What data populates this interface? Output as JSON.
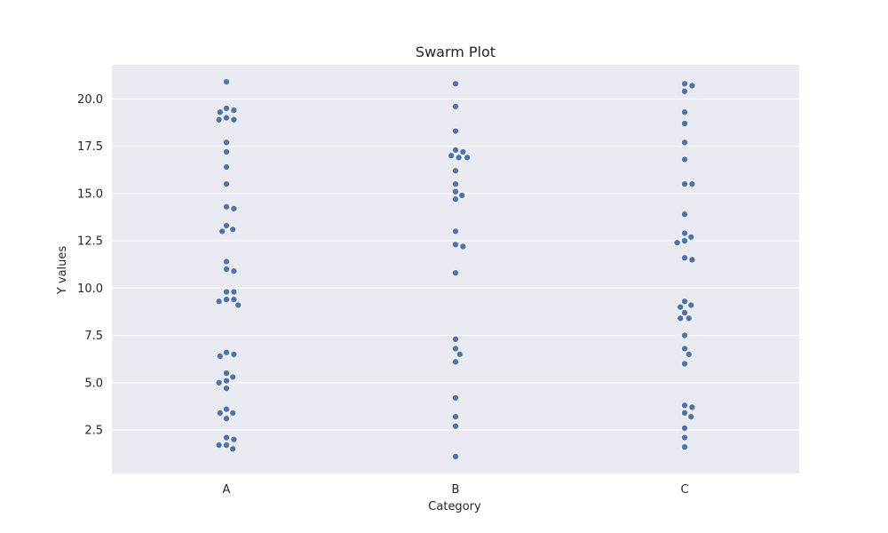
{
  "chart_data": {
    "type": "scatter",
    "subtype": "swarm",
    "title": "Swarm Plot",
    "xlabel": "Category",
    "ylabel": "Y values",
    "categories": [
      "A",
      "B",
      "C"
    ],
    "yticks": [
      "2.5",
      "5.0",
      "7.5",
      "10.0",
      "12.5",
      "15.0",
      "17.5",
      "20.0"
    ],
    "ylim": [
      0.2,
      21.8
    ],
    "grid": true,
    "legend": "none",
    "point_color": "#4c72b0",
    "background_color": "#eaeaf2",
    "series": [
      {
        "category": "A",
        "values": [
          20.9,
          19.5,
          19.3,
          19.4,
          19.0,
          18.9,
          18.9,
          17.7,
          17.2,
          16.4,
          15.5,
          14.3,
          14.2,
          13.3,
          13.1,
          13.0,
          11.4,
          11.0,
          10.9,
          9.8,
          9.8,
          9.4,
          9.4,
          9.3,
          9.1,
          6.6,
          6.5,
          6.4,
          5.5,
          5.3,
          5.1,
          5.0,
          4.7,
          3.6,
          3.4,
          3.4,
          3.1,
          2.1,
          2.0,
          1.7,
          1.7,
          1.5
        ]
      },
      {
        "category": "B",
        "values": [
          20.8,
          19.6,
          18.3,
          17.3,
          17.2,
          17.0,
          16.9,
          16.9,
          16.2,
          15.5,
          15.1,
          14.9,
          14.7,
          13.0,
          12.3,
          12.2,
          10.8,
          7.3,
          6.8,
          6.5,
          6.1,
          4.2,
          3.2,
          2.7,
          1.1
        ]
      },
      {
        "category": "C",
        "values": [
          20.8,
          20.7,
          20.4,
          19.3,
          18.7,
          17.7,
          16.8,
          15.5,
          15.5,
          13.9,
          12.9,
          12.7,
          12.5,
          12.4,
          11.6,
          11.5,
          9.3,
          9.1,
          9.0,
          8.7,
          8.4,
          8.4,
          7.5,
          6.8,
          6.5,
          6.0,
          3.8,
          3.7,
          3.4,
          3.2,
          2.6,
          2.1,
          1.6
        ]
      }
    ]
  }
}
